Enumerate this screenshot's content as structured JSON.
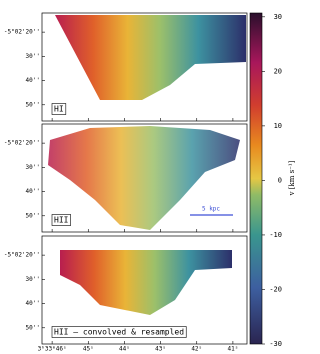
{
  "chart_data": {
    "type": "map",
    "panels": [
      {
        "label": "HI"
      },
      {
        "label": "HII"
      },
      {
        "label": "HII — convolved & resampled"
      }
    ],
    "xlim": [
      46.28,
      40.61
    ],
    "xticks": [
      {
        "value": 46,
        "label": "3ʰ33ᵐ46ˢ"
      },
      {
        "value": 45,
        "label": "45ˢ"
      },
      {
        "value": 44,
        "label": "44ˢ"
      },
      {
        "value": 43,
        "label": "43ˢ"
      },
      {
        "value": 42,
        "label": "42ˢ"
      },
      {
        "value": 41,
        "label": "41ˢ"
      }
    ],
    "ylim": [
      12.1,
      56.7
    ],
    "yticks": [
      {
        "value": 20,
        "label": "-5°02'20''"
      },
      {
        "value": 30,
        "label": "30''"
      },
      {
        "value": 40,
        "label": "40''"
      },
      {
        "value": 50,
        "label": "50''"
      }
    ],
    "scalebar_label": "5 kpc",
    "colorbar": {
      "label": "v [km s⁻¹]",
      "lim": [
        -30,
        30.7
      ],
      "ticks": [
        30,
        20,
        10,
        0,
        -10,
        -20,
        -30
      ]
    }
  }
}
